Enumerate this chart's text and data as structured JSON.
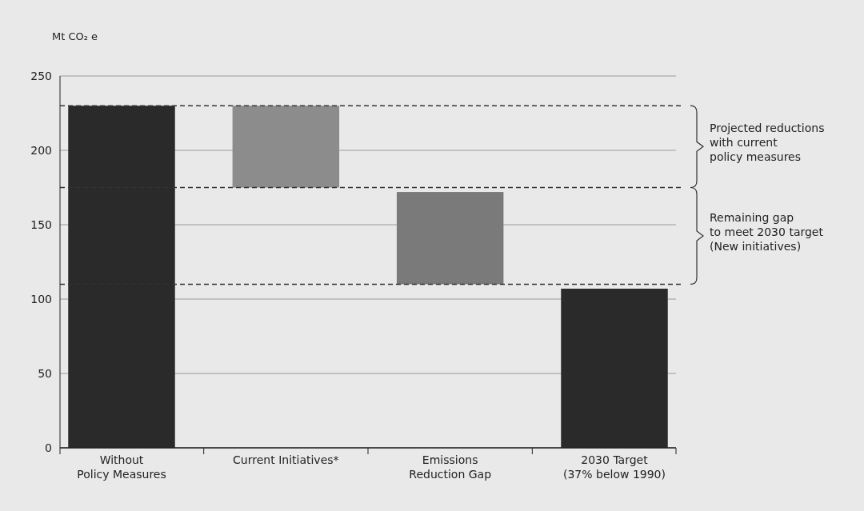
{
  "chart_data": {
    "type": "bar",
    "ylabel": "Mt CO₂ e",
    "categories": [
      "Without\nPolicy Measures",
      "Current Initiatives*",
      "Emissions\nReduction Gap",
      "2030 Target\n(37% below 1990)"
    ],
    "values": [
      230,
      55,
      62,
      107
    ],
    "base": [
      0,
      175,
      110,
      0
    ],
    "colors": [
      "#2a2a2a",
      "#8c8c8c",
      "#7a7a7a",
      "#2a2a2a"
    ],
    "ylim": [
      0,
      250
    ],
    "yticks": [
      0,
      50,
      100,
      150,
      200,
      250
    ],
    "grid": "y",
    "ref_lines": [
      {
        "axis": "y",
        "value": 230,
        "line_style": "dashed",
        "color": "#333333"
      },
      {
        "axis": "y",
        "value": 175,
        "line_style": "dashed",
        "color": "#333333"
      },
      {
        "axis": "y",
        "value": 110,
        "line_style": "dashed",
        "color": "#333333"
      }
    ],
    "annotations": [
      "Projected reductions\nwith current\npolicy measures",
      "Remaining gap\nto meet 2030 target\n(New initiatives)"
    ]
  }
}
